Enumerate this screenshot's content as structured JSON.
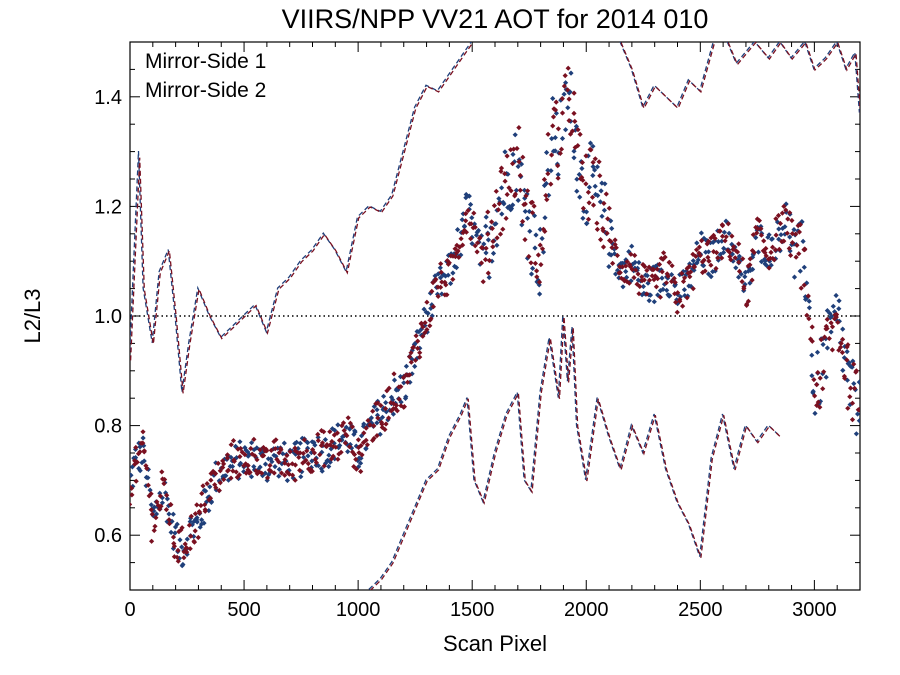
{
  "chart_data": {
    "type": "scatter",
    "title": "VIIRS/NPP VV21 AOT for 2014 010",
    "xlabel": "Scan Pixel",
    "ylabel": "L2/L3",
    "xlim": [
      0,
      3200
    ],
    "ylim": [
      0.5,
      1.5
    ],
    "xticks": [
      0,
      500,
      1000,
      1500,
      2000,
      2500,
      3000
    ],
    "yticks": [
      0.6,
      0.8,
      1.0,
      1.2,
      1.4
    ],
    "xtick_labels": [
      "0",
      "500",
      "1000",
      "1500",
      "2000",
      "2500",
      "3000"
    ],
    "ytick_labels": [
      "0.6",
      "0.8",
      "1.0",
      "1.2",
      "1.4"
    ],
    "reference_line": {
      "y": 1.0,
      "style": "dotted",
      "color": "#000000"
    },
    "legend_placement": "top-left",
    "series": [
      {
        "name": "Mirror-Side 1",
        "color": "#1f3f7a",
        "mean": {
          "x": [
            0,
            30,
            60,
            100,
            150,
            200,
            230,
            260,
            300,
            350,
            400,
            450,
            500,
            550,
            600,
            650,
            700,
            750,
            800,
            850,
            900,
            950,
            1000,
            1050,
            1100,
            1150,
            1200,
            1250,
            1300,
            1350,
            1400,
            1450,
            1480,
            1510,
            1550,
            1600,
            1650,
            1700,
            1730,
            1760,
            1800,
            1830,
            1860,
            1880,
            1900,
            1930,
            1960,
            1990,
            2020,
            2060,
            2100,
            2150,
            2200,
            2250,
            2300,
            2350,
            2400,
            2450,
            2500,
            2550,
            2600,
            2650,
            2700,
            2750,
            2800,
            2850,
            2880,
            2920,
            2950,
            2980,
            3000,
            3030,
            3060,
            3100,
            3150,
            3200
          ],
          "y": [
            0.7,
            0.74,
            0.75,
            0.63,
            0.68,
            0.59,
            0.57,
            0.61,
            0.62,
            0.68,
            0.72,
            0.73,
            0.74,
            0.74,
            0.73,
            0.74,
            0.73,
            0.74,
            0.76,
            0.75,
            0.77,
            0.78,
            0.75,
            0.79,
            0.82,
            0.85,
            0.87,
            0.93,
            1.0,
            1.05,
            1.08,
            1.14,
            1.2,
            1.15,
            1.1,
            1.18,
            1.25,
            1.28,
            1.2,
            1.15,
            1.1,
            1.25,
            1.35,
            1.3,
            1.37,
            1.4,
            1.3,
            1.22,
            1.25,
            1.2,
            1.15,
            1.08,
            1.1,
            1.05,
            1.06,
            1.08,
            1.04,
            1.06,
            1.12,
            1.1,
            1.15,
            1.12,
            1.05,
            1.14,
            1.12,
            1.15,
            1.18,
            1.1,
            1.12,
            1.0,
            0.85,
            0.9,
            0.95,
            1.0,
            0.88,
            0.82
          ]
        },
        "upper": {
          "x": [
            0,
            40,
            60,
            100,
            130,
            170,
            200,
            230,
            260,
            300,
            350,
            400,
            450,
            500,
            550,
            600,
            650,
            700,
            750,
            800,
            850,
            900,
            950,
            1000,
            1050,
            1100,
            1150,
            1200,
            1250,
            1300,
            1350,
            1400,
            1450,
            1500
          ],
          "y": [
            0.92,
            1.3,
            1.05,
            0.95,
            1.08,
            1.12,
            1.0,
            0.86,
            0.95,
            1.05,
            1.0,
            0.96,
            0.98,
            1.0,
            1.02,
            0.97,
            1.05,
            1.07,
            1.1,
            1.12,
            1.15,
            1.12,
            1.08,
            1.18,
            1.2,
            1.19,
            1.22,
            1.3,
            1.38,
            1.42,
            1.41,
            1.44,
            1.47,
            1.5
          ]
        },
        "upper_segment_2": {
          "x": [
            2150,
            2200,
            2250,
            2300,
            2350,
            2400,
            2450,
            2500,
            2560
          ],
          "y": [
            1.5,
            1.45,
            1.38,
            1.42,
            1.4,
            1.38,
            1.43,
            1.41,
            1.5
          ]
        },
        "upper_segment_3": {
          "x": [
            2620,
            2660,
            2700,
            2740,
            2800,
            2850,
            2900,
            2960,
            3000,
            3050,
            3100,
            3140,
            3180,
            3200
          ],
          "y": [
            1.5,
            1.46,
            1.48,
            1.5,
            1.47,
            1.5,
            1.47,
            1.5,
            1.45,
            1.47,
            1.5,
            1.45,
            1.48,
            1.37
          ]
        },
        "lower": {
          "x": [
            1050,
            1100,
            1150,
            1200,
            1250,
            1300,
            1350,
            1400,
            1450,
            1480,
            1510,
            1550,
            1600,
            1650,
            1700,
            1730,
            1760,
            1800,
            1840,
            1880,
            1900,
            1920,
            1940,
            1960,
            2000,
            2050,
            2100,
            2150,
            2200,
            2250,
            2300,
            2350,
            2400,
            2450,
            2500,
            2550,
            2600,
            2650,
            2700,
            2750,
            2800,
            2850
          ],
          "y": [
            0.5,
            0.52,
            0.55,
            0.6,
            0.65,
            0.7,
            0.72,
            0.78,
            0.82,
            0.85,
            0.7,
            0.66,
            0.75,
            0.82,
            0.86,
            0.7,
            0.68,
            0.86,
            0.96,
            0.85,
            1.0,
            0.88,
            0.98,
            0.8,
            0.7,
            0.85,
            0.78,
            0.72,
            0.8,
            0.75,
            0.82,
            0.72,
            0.66,
            0.62,
            0.56,
            0.74,
            0.82,
            0.72,
            0.8,
            0.77,
            0.8,
            0.78
          ]
        }
      },
      {
        "name": "Mirror-Side 2",
        "color": "#7a1020",
        "mean": {
          "x": [
            0,
            30,
            60,
            100,
            150,
            200,
            230,
            260,
            300,
            350,
            400,
            450,
            500,
            550,
            600,
            650,
            700,
            750,
            800,
            850,
            900,
            950,
            1000,
            1050,
            1100,
            1150,
            1200,
            1250,
            1300,
            1350,
            1400,
            1450,
            1480,
            1510,
            1550,
            1600,
            1650,
            1700,
            1730,
            1760,
            1800,
            1830,
            1860,
            1880,
            1900,
            1930,
            1960,
            1990,
            2020,
            2060,
            2100,
            2150,
            2200,
            2250,
            2300,
            2350,
            2400,
            2450,
            2500,
            2550,
            2600,
            2650,
            2700,
            2750,
            2800,
            2850,
            2880,
            2920,
            2950,
            2980,
            3000,
            3030,
            3060,
            3100,
            3150,
            3200
          ],
          "y": [
            0.69,
            0.73,
            0.76,
            0.62,
            0.69,
            0.58,
            0.58,
            0.6,
            0.63,
            0.69,
            0.71,
            0.74,
            0.73,
            0.75,
            0.72,
            0.75,
            0.72,
            0.75,
            0.75,
            0.76,
            0.76,
            0.79,
            0.74,
            0.8,
            0.81,
            0.86,
            0.86,
            0.94,
            0.99,
            1.06,
            1.07,
            1.15,
            1.19,
            1.16,
            1.09,
            1.19,
            1.24,
            1.29,
            1.19,
            1.16,
            1.09,
            1.26,
            1.34,
            1.31,
            1.36,
            1.41,
            1.29,
            1.23,
            1.24,
            1.21,
            1.14,
            1.09,
            1.09,
            1.06,
            1.05,
            1.09,
            1.03,
            1.07,
            1.11,
            1.11,
            1.14,
            1.13,
            1.04,
            1.15,
            1.11,
            1.16,
            1.17,
            1.11,
            1.11,
            0.99,
            0.86,
            0.89,
            0.96,
            0.99,
            0.89,
            0.83
          ]
        },
        "upper": {
          "x": [
            0,
            40,
            60,
            100,
            130,
            170,
            200,
            230,
            260,
            300,
            350,
            400,
            450,
            500,
            550,
            600,
            650,
            700,
            750,
            800,
            850,
            900,
            950,
            1000,
            1050,
            1100,
            1150,
            1200,
            1250,
            1300,
            1350,
            1400,
            1450,
            1500
          ],
          "y": [
            0.92,
            1.29,
            1.05,
            0.95,
            1.08,
            1.12,
            1.0,
            0.86,
            0.95,
            1.05,
            1.0,
            0.96,
            0.98,
            1.0,
            1.02,
            0.97,
            1.05,
            1.07,
            1.1,
            1.12,
            1.15,
            1.12,
            1.08,
            1.18,
            1.2,
            1.19,
            1.22,
            1.3,
            1.38,
            1.42,
            1.41,
            1.44,
            1.47,
            1.5
          ]
        },
        "upper_segment_2": {
          "x": [
            2150,
            2200,
            2250,
            2300,
            2350,
            2400,
            2450,
            2500,
            2560
          ],
          "y": [
            1.5,
            1.45,
            1.38,
            1.42,
            1.4,
            1.38,
            1.43,
            1.41,
            1.5
          ]
        },
        "upper_segment_3": {
          "x": [
            2620,
            2660,
            2700,
            2740,
            2800,
            2850,
            2900,
            2960,
            3000,
            3050,
            3100,
            3140,
            3180,
            3200
          ],
          "y": [
            1.5,
            1.46,
            1.48,
            1.5,
            1.47,
            1.5,
            1.47,
            1.5,
            1.45,
            1.47,
            1.5,
            1.45,
            1.48,
            1.37
          ]
        },
        "lower": {
          "x": [
            1050,
            1100,
            1150,
            1200,
            1250,
            1300,
            1350,
            1400,
            1450,
            1480,
            1510,
            1550,
            1600,
            1650,
            1700,
            1730,
            1760,
            1800,
            1840,
            1880,
            1900,
            1920,
            1940,
            1960,
            2000,
            2050,
            2100,
            2150,
            2200,
            2250,
            2300,
            2350,
            2400,
            2450,
            2500,
            2550,
            2600,
            2650,
            2700,
            2750,
            2800,
            2850
          ],
          "y": [
            0.5,
            0.52,
            0.55,
            0.6,
            0.65,
            0.7,
            0.72,
            0.78,
            0.82,
            0.85,
            0.7,
            0.66,
            0.75,
            0.82,
            0.86,
            0.7,
            0.68,
            0.86,
            0.96,
            0.85,
            1.0,
            0.88,
            0.98,
            0.8,
            0.7,
            0.85,
            0.78,
            0.72,
            0.8,
            0.75,
            0.82,
            0.72,
            0.66,
            0.62,
            0.56,
            0.74,
            0.82,
            0.72,
            0.8,
            0.77,
            0.8,
            0.78
          ]
        }
      }
    ]
  }
}
